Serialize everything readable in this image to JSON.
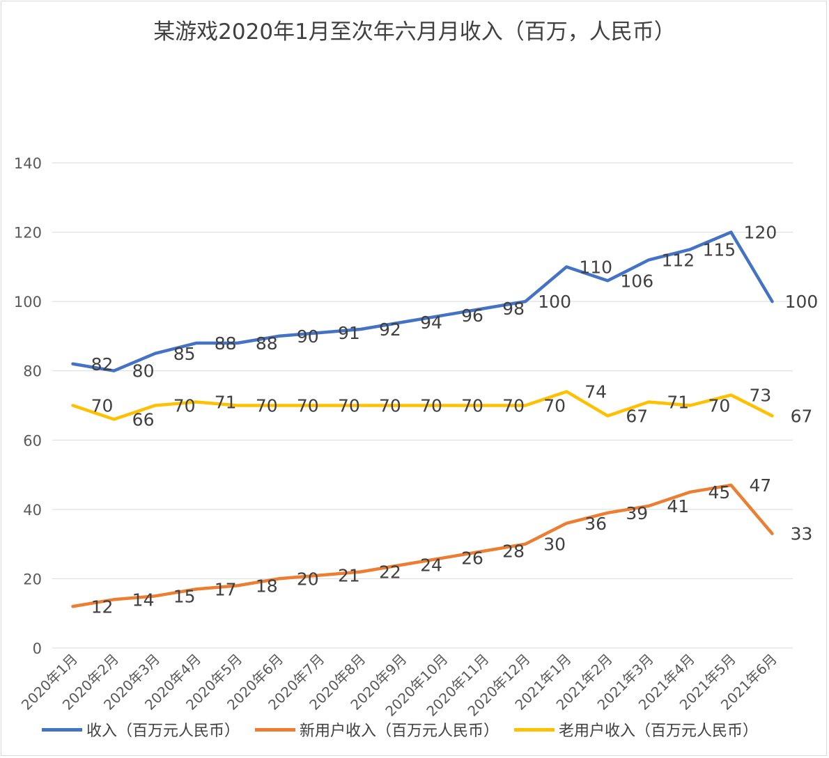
{
  "chart_data": {
    "type": "line",
    "title": "某游戏2020年1月至次年六月月收入（百万，人民币）",
    "categories": [
      "2020年1月",
      "2020年2月",
      "2020年3月",
      "2020年4月",
      "2020年5月",
      "2020年6月",
      "2020年7月",
      "2020年8月",
      "2020年9月",
      "2020年10月",
      "2020年11月",
      "2020年12月",
      "2021年1月",
      "2021年2月",
      "2021年3月",
      "2021年4月",
      "2021年5月",
      "2021年6月"
    ],
    "ylim": [
      0,
      140
    ],
    "yticks": [
      "0",
      "20",
      "40",
      "60",
      "80",
      "100",
      "120",
      "140"
    ],
    "grid": true,
    "legend": "bottom",
    "series": [
      {
        "name": "收入（百万元人民币）",
        "color": "#4472C4",
        "values": [
          82,
          80,
          85,
          88,
          88,
          90,
          91,
          92,
          94,
          96,
          98,
          100,
          110,
          106,
          112,
          115,
          120,
          100
        ]
      },
      {
        "name": "新用户收入（百万元人民币）",
        "color": "#ED7D31",
        "values": [
          12,
          14,
          15,
          17,
          18,
          20,
          21,
          22,
          24,
          26,
          28,
          30,
          36,
          39,
          41,
          45,
          47,
          33
        ]
      },
      {
        "name": "老用户收入（百万元人民币）",
        "color": "#FFC000",
        "values": [
          70,
          66,
          70,
          71,
          70,
          70,
          70,
          70,
          70,
          70,
          70,
          70,
          74,
          67,
          71,
          70,
          73,
          67
        ]
      }
    ]
  }
}
